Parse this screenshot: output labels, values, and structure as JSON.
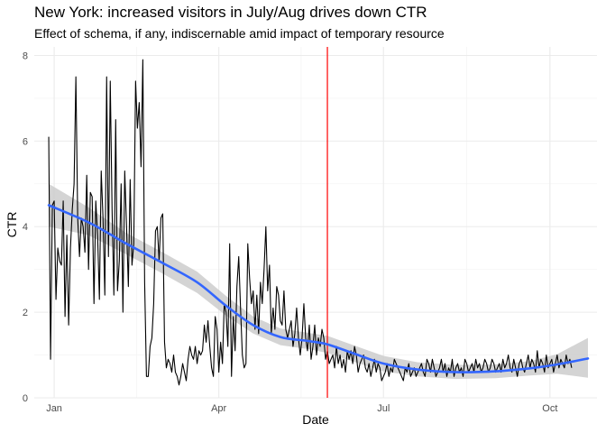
{
  "chart_data": {
    "type": "line",
    "title": "New York: increased visitors in July/Aug drives down CTR",
    "subtitle": "Effect of schema, if any, indiscernable amid impact of temporary resource",
    "xlabel": "Date",
    "ylabel": "CTR",
    "x_ticks": [
      {
        "date": "2020-01-01",
        "label": "Jan"
      },
      {
        "date": "2020-04-01",
        "label": "Apr"
      },
      {
        "date": "2020-07-01",
        "label": "Jul"
      },
      {
        "date": "2020-10-01",
        "label": "Oct"
      }
    ],
    "xlim": [
      "2019-12-21",
      "2020-10-27"
    ],
    "ylim": [
      0,
      8.2
    ],
    "y_ticks": [
      0,
      2,
      4,
      6,
      8
    ],
    "grid": true,
    "vline": {
      "date": "2020-05-31",
      "color": "#ff0000"
    },
    "series": [
      {
        "style": "raw",
        "color": "#000000",
        "start_date": "2019-12-29",
        "values": [
          6.1,
          0.9,
          4.5,
          4.6,
          2.3,
          3.5,
          3.2,
          3.1,
          4.6,
          1.9,
          3.8,
          1.7,
          3.5,
          4.4,
          5.0,
          7.5,
          4.2,
          3.3,
          4.2,
          4.0,
          3.4,
          5.2,
          3.0,
          4.8,
          4.7,
          2.2,
          4.6,
          3.8,
          2.3,
          5.3,
          4.2,
          2.4,
          7.5,
          3.3,
          7.4,
          4.4,
          2.4,
          6.5,
          2.5,
          3.2,
          5.0,
          2.0,
          5.3,
          4.0,
          2.6,
          5.1,
          3.1,
          3.6,
          7.4,
          6.3,
          6.9,
          5.4,
          7.9,
          2.7,
          0.5,
          0.5,
          1.2,
          1.4,
          2.2,
          3.9,
          4.0,
          3.2,
          4.2,
          4.3,
          1.3,
          0.7,
          0.9,
          0.8,
          0.6,
          1.0,
          0.6,
          0.5,
          0.3,
          0.5,
          0.8,
          0.6,
          0.4,
          0.9,
          1.2,
          1.0,
          0.9,
          1.2,
          0.8,
          1.1,
          1.0,
          1.1,
          1.7,
          1.3,
          1.8,
          1.2,
          0.7,
          0.5,
          1.9,
          1.6,
          0.6,
          1.3,
          0.8,
          2.2,
          2.0,
          1.2,
          3.6,
          0.5,
          1.9,
          1.1,
          2.6,
          3.3,
          2.1,
          1.0,
          0.7,
          0.8,
          3.6,
          2.8,
          2.2,
          2.5,
          1.6,
          2.4,
          1.5,
          2.7,
          2.2,
          3.0,
          4.0,
          2.5,
          3.1,
          1.5,
          2.1,
          1.6,
          2.6,
          2.4,
          1.8,
          1.7,
          2.5,
          1.6,
          1.4,
          1.6,
          1.8,
          1.2,
          1.5,
          2.1,
          1.4,
          1.0,
          1.4,
          2.2,
          1.4,
          1.1,
          1.7,
          0.9,
          1.2,
          1.7,
          1.0,
          1.4,
          1.2,
          1.6,
          1.4,
          0.9,
          1.1,
          0.8,
          0.9,
          1.0,
          0.7,
          1.2,
          0.8,
          1.0,
          0.7,
          0.9,
          0.6,
          1.1,
          0.9,
          1.1,
          0.8,
          1.2,
          1.0,
          0.6,
          0.8,
          0.9,
          1.0,
          0.7,
          0.6,
          0.8,
          0.5,
          0.7,
          0.9,
          0.6,
          0.8,
          0.7,
          0.4,
          0.5,
          0.6,
          0.8,
          0.5,
          0.7,
          0.6,
          0.9,
          0.8,
          0.7,
          0.6,
          0.5,
          0.4,
          0.7,
          0.6,
          0.8,
          0.5,
          0.6,
          0.7,
          0.5,
          0.6,
          0.7,
          0.8,
          0.6,
          0.5,
          0.9,
          0.8,
          0.6,
          0.9,
          0.7,
          0.5,
          0.6,
          0.7,
          0.9,
          0.6,
          0.8,
          0.5,
          0.7,
          0.6,
          0.9,
          0.5,
          0.7,
          0.8,
          0.6,
          0.7,
          0.5,
          0.9,
          0.8,
          0.6,
          0.7,
          0.8,
          0.6,
          0.9,
          0.7,
          0.8,
          0.6,
          0.7,
          0.9,
          0.8,
          0.6,
          0.7,
          0.9,
          0.8,
          0.6,
          0.7,
          0.8,
          0.6,
          0.9,
          0.7,
          0.8,
          1.0,
          0.7,
          0.6,
          0.9,
          0.7,
          0.5,
          0.8,
          0.9,
          0.7,
          0.6,
          0.8,
          1.0,
          0.7,
          0.9,
          0.8,
          0.6,
          1.1,
          0.7,
          0.9,
          0.8,
          0.6,
          1.0,
          0.7,
          0.8,
          0.9,
          0.6,
          0.8,
          1.0,
          0.7,
          0.9,
          0.8,
          0.7,
          1.0,
          0.8,
          0.9,
          0.7
        ]
      },
      {
        "style": "smooth",
        "color": "#3366ff",
        "band_color": "#cccccc",
        "points": [
          {
            "date": "2019-12-29",
            "y": 4.5,
            "lo": 4.0,
            "hi": 5.0
          },
          {
            "date": "2020-01-20",
            "y": 4.1,
            "lo": 3.8,
            "hi": 4.45
          },
          {
            "date": "2020-02-10",
            "y": 3.6,
            "lo": 3.35,
            "hi": 3.85
          },
          {
            "date": "2020-03-01",
            "y": 3.15,
            "lo": 2.9,
            "hi": 3.4
          },
          {
            "date": "2020-03-20",
            "y": 2.7,
            "lo": 2.45,
            "hi": 2.95
          },
          {
            "date": "2020-04-05",
            "y": 2.15,
            "lo": 1.92,
            "hi": 2.38
          },
          {
            "date": "2020-04-20",
            "y": 1.7,
            "lo": 1.5,
            "hi": 1.9
          },
          {
            "date": "2020-05-05",
            "y": 1.42,
            "lo": 1.23,
            "hi": 1.62
          },
          {
            "date": "2020-05-20",
            "y": 1.33,
            "lo": 1.14,
            "hi": 1.52
          },
          {
            "date": "2020-05-31",
            "y": 1.25,
            "lo": 1.05,
            "hi": 1.45
          },
          {
            "date": "2020-06-15",
            "y": 1.03,
            "lo": 0.84,
            "hi": 1.22
          },
          {
            "date": "2020-07-01",
            "y": 0.8,
            "lo": 0.62,
            "hi": 0.98
          },
          {
            "date": "2020-07-20",
            "y": 0.66,
            "lo": 0.5,
            "hi": 0.83
          },
          {
            "date": "2020-08-10",
            "y": 0.6,
            "lo": 0.44,
            "hi": 0.77
          },
          {
            "date": "2020-09-01",
            "y": 0.62,
            "lo": 0.46,
            "hi": 0.78
          },
          {
            "date": "2020-09-20",
            "y": 0.69,
            "lo": 0.52,
            "hi": 0.86
          },
          {
            "date": "2020-10-05",
            "y": 0.78,
            "lo": 0.56,
            "hi": 1.02
          },
          {
            "date": "2020-10-22",
            "y": 0.92,
            "lo": 0.47,
            "hi": 1.4
          }
        ]
      }
    ]
  }
}
